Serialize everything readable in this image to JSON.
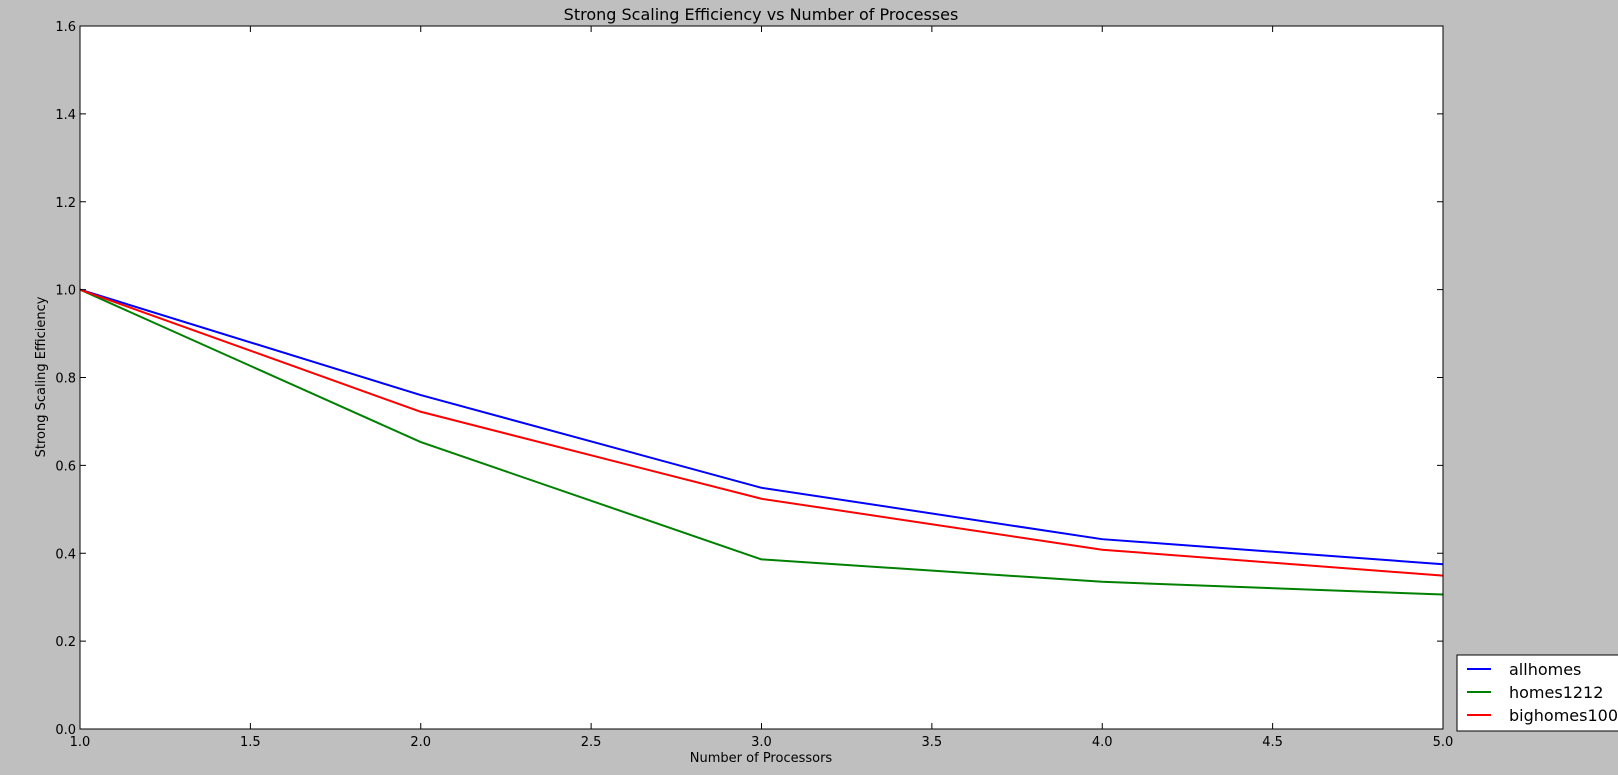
{
  "chart_data": {
    "type": "line",
    "title": "Strong Scaling Efficiency vs Number of Processes",
    "xlabel": "Number of Processors",
    "ylabel": "Strong Scaling Efficiency",
    "xlim": [
      1.0,
      5.0
    ],
    "ylim": [
      0.0,
      1.6
    ],
    "xticks": [
      "1.0",
      "1.5",
      "2.0",
      "2.5",
      "3.0",
      "3.5",
      "4.0",
      "4.5",
      "5.0"
    ],
    "yticks": [
      "0.0",
      "0.2",
      "0.4",
      "0.6",
      "0.8",
      "1.0",
      "1.2",
      "1.4",
      "1.6"
    ],
    "grid": false,
    "legend_position": "lower-right-outside",
    "x": [
      1,
      2,
      3,
      4,
      5
    ],
    "series": [
      {
        "name": "allhomes",
        "color": "#0000ff",
        "values": [
          1.0,
          0.76,
          0.549,
          0.432,
          0.375
        ]
      },
      {
        "name": "homes1212",
        "color": "#008000",
        "values": [
          1.0,
          0.653,
          0.386,
          0.335,
          0.306
        ]
      },
      {
        "name": "bighomes100",
        "color": "#ff0000",
        "values": [
          1.0,
          0.722,
          0.524,
          0.408,
          0.349
        ]
      }
    ]
  }
}
